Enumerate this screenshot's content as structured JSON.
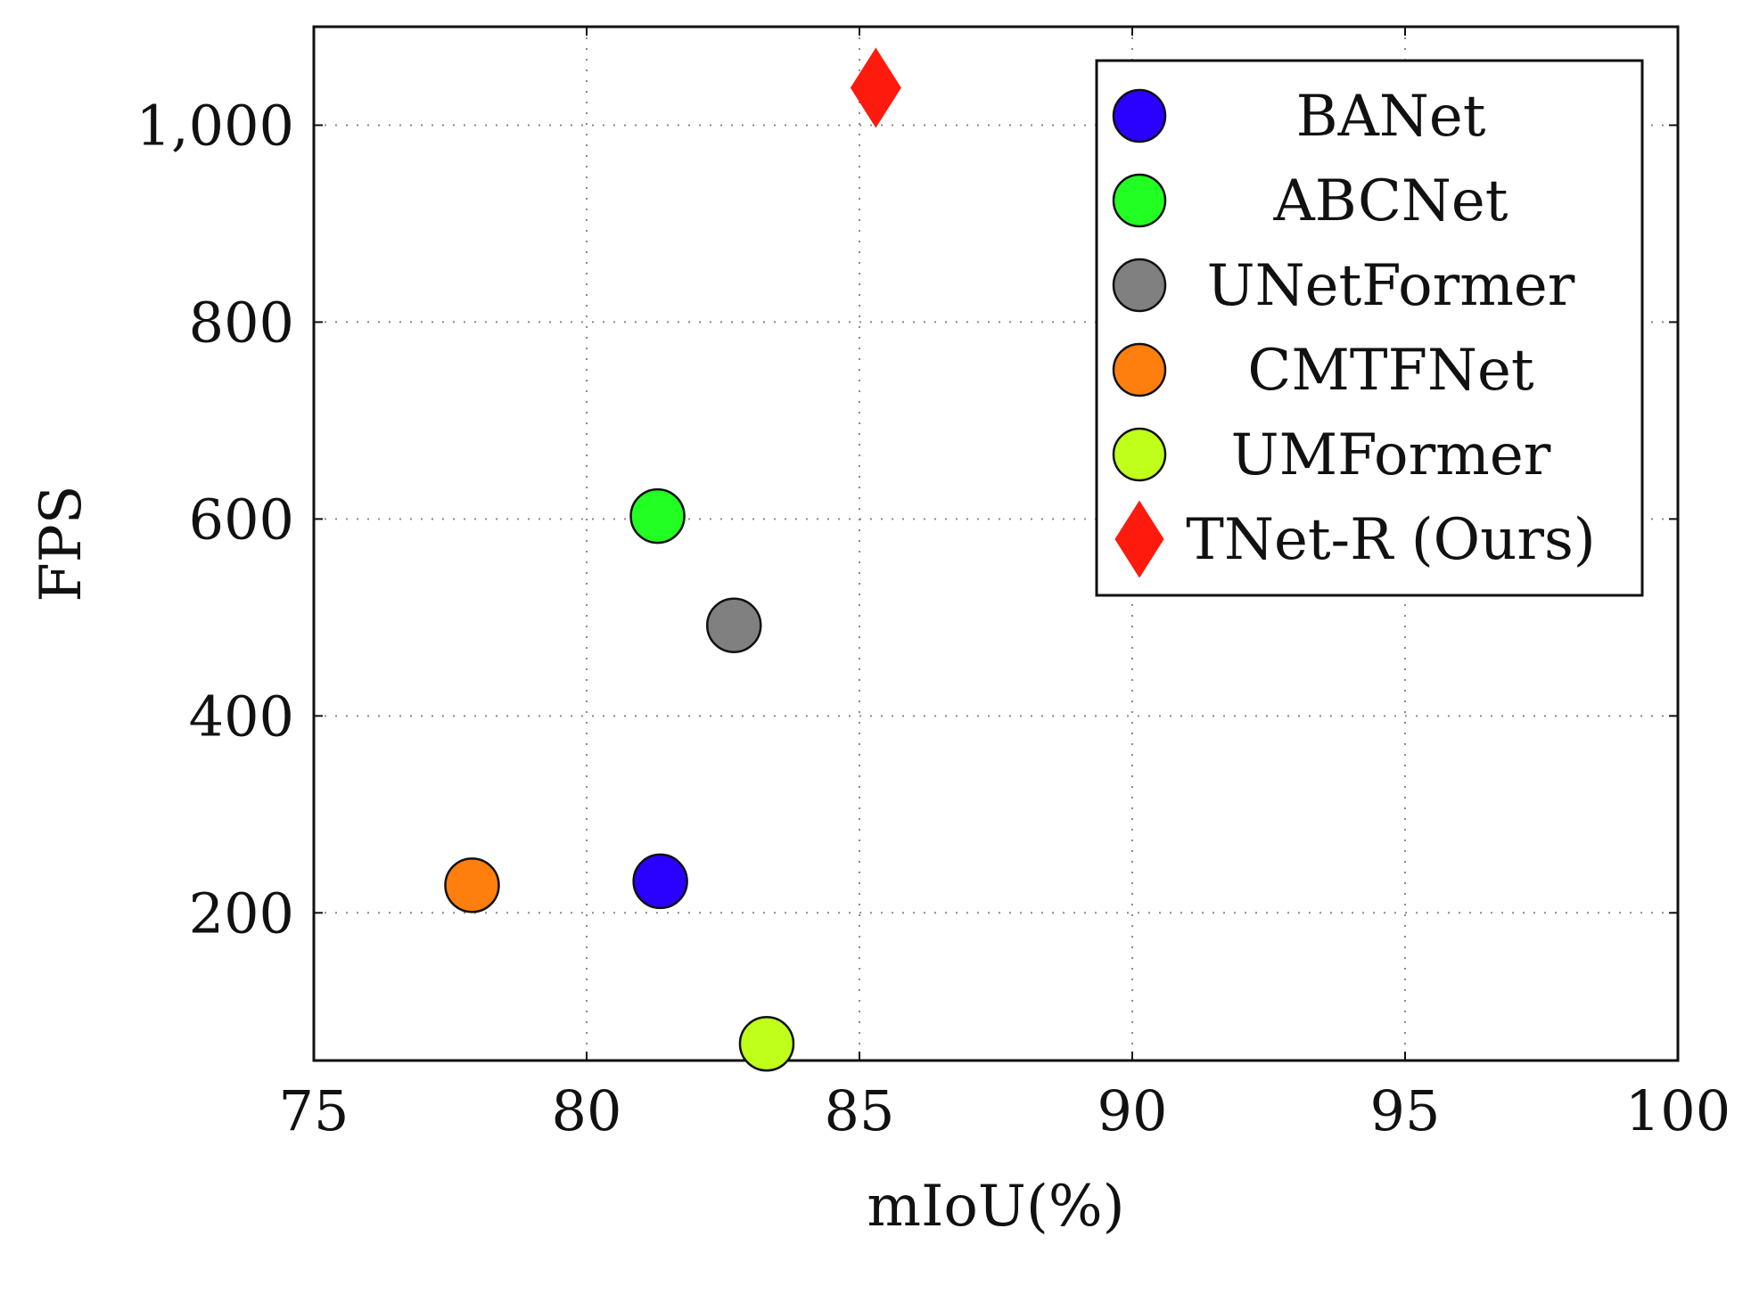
{
  "chart_data": {
    "type": "scatter",
    "title": "",
    "xlabel": "mIoU(%)",
    "ylabel": "FPS",
    "xlim": [
      75,
      100
    ],
    "ylim": [
      50,
      1100
    ],
    "x_ticks": [
      75,
      80,
      85,
      90,
      95,
      100
    ],
    "x_tick_labels": [
      "75",
      "80",
      "85",
      "90",
      "95",
      "100"
    ],
    "y_ticks": [
      200,
      400,
      600,
      800,
      1000
    ],
    "y_tick_labels": [
      "200",
      "400",
      "600",
      "800",
      "1,000"
    ],
    "grid": true,
    "legend_position": "top-right",
    "series": [
      {
        "name": "BANet",
        "marker": "circle",
        "color": "#2a00ff",
        "x": 81.35,
        "y": 232
      },
      {
        "name": "ABCNet",
        "marker": "circle",
        "color": "#22ff22",
        "x": 81.3,
        "y": 603
      },
      {
        "name": "UNetFormer",
        "marker": "circle",
        "color": "#808080",
        "x": 82.7,
        "y": 492
      },
      {
        "name": "CMTFNet",
        "marker": "circle",
        "color": "#ff7f0e",
        "x": 77.9,
        "y": 228
      },
      {
        "name": "UMFormer",
        "marker": "circle",
        "color": "#bfff1a",
        "x": 83.3,
        "y": 67
      },
      {
        "name": "TNet-R (Ours)",
        "marker": "diamond",
        "color": "#ff1a0e",
        "x": 85.3,
        "y": 1038
      }
    ]
  }
}
